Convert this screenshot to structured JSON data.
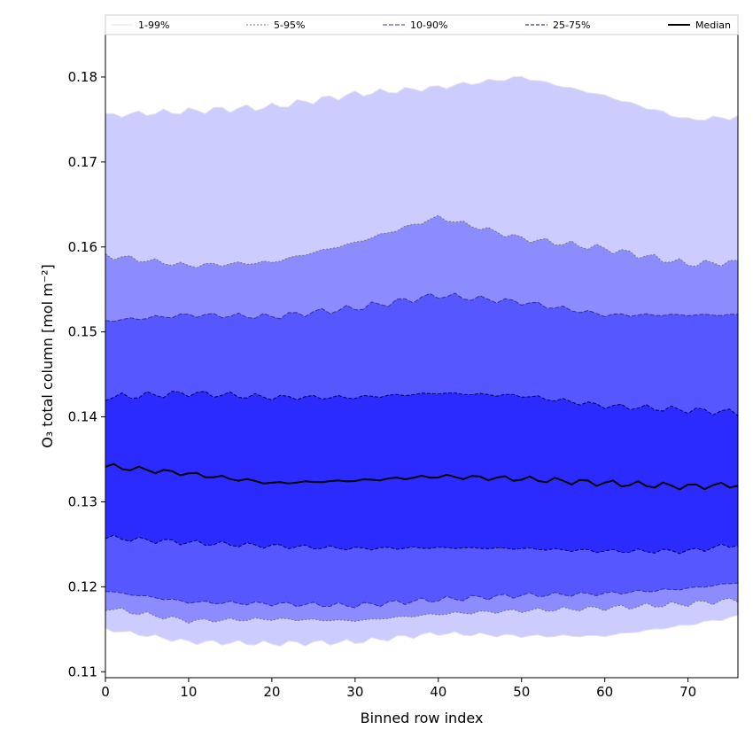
{
  "chart_data": {
    "type": "area",
    "title": "",
    "xlabel": "Binned row index",
    "ylabel": "O₃ total column [mol m⁻²]",
    "xlim": [
      0,
      76
    ],
    "ylim": [
      0.1093,
      0.185
    ],
    "xticks": [
      0,
      10,
      20,
      30,
      40,
      50,
      60,
      70
    ],
    "yticks": [
      0.11,
      0.12,
      0.13,
      0.14,
      0.15,
      0.16,
      0.17,
      0.18
    ],
    "grid": false,
    "legend_position": "top",
    "anchor_x": [
      0,
      10,
      20,
      30,
      40,
      50,
      60,
      70,
      76
    ],
    "bands": [
      {
        "name": "1-99%",
        "fill": "#ccccff",
        "edge": "#e6e6e6",
        "dash": "",
        "lower": [
          0.115,
          0.1135,
          0.1133,
          0.1135,
          0.1145,
          0.1142,
          0.1142,
          0.1155,
          0.1165
        ],
        "upper": [
          0.1755,
          0.176,
          0.1765,
          0.178,
          0.1788,
          0.18,
          0.1778,
          0.175,
          0.1753
        ]
      },
      {
        "name": "5-95%",
        "fill": "#8c8cff",
        "edge": "#777777",
        "dash": "2,2",
        "lower": [
          0.1175,
          0.116,
          0.1162,
          0.116,
          0.1168,
          0.1172,
          0.1175,
          0.118,
          0.1185
        ],
        "upper": [
          0.159,
          0.1578,
          0.1582,
          0.1605,
          0.1635,
          0.161,
          0.1598,
          0.158,
          0.1582
        ]
      },
      {
        "name": "10-90%",
        "fill": "#5757ff",
        "edge": "#333399",
        "dash": "5,2",
        "lower": [
          0.1195,
          0.1182,
          0.118,
          0.1178,
          0.1185,
          0.119,
          0.1192,
          0.1198,
          0.1205
        ],
        "upper": [
          0.1513,
          0.152,
          0.1518,
          0.1528,
          0.1543,
          0.1535,
          0.152,
          0.152,
          0.152
        ]
      },
      {
        "name": "25-75%",
        "fill": "#2b2bff",
        "edge": "#000055",
        "dash": "4,2",
        "lower": [
          0.1258,
          0.1252,
          0.1248,
          0.1245,
          0.1246,
          0.1245,
          0.1242,
          0.1242,
          0.125
        ],
        "upper": [
          0.1423,
          0.1428,
          0.1423,
          0.1423,
          0.1428,
          0.1425,
          0.1413,
          0.1408,
          0.1405
        ]
      }
    ],
    "median": {
      "name": "Median",
      "color": "#000000",
      "values": [
        0.1342,
        0.1333,
        0.1322,
        0.1325,
        0.133,
        0.1327,
        0.1322,
        0.1318,
        0.132
      ]
    }
  }
}
